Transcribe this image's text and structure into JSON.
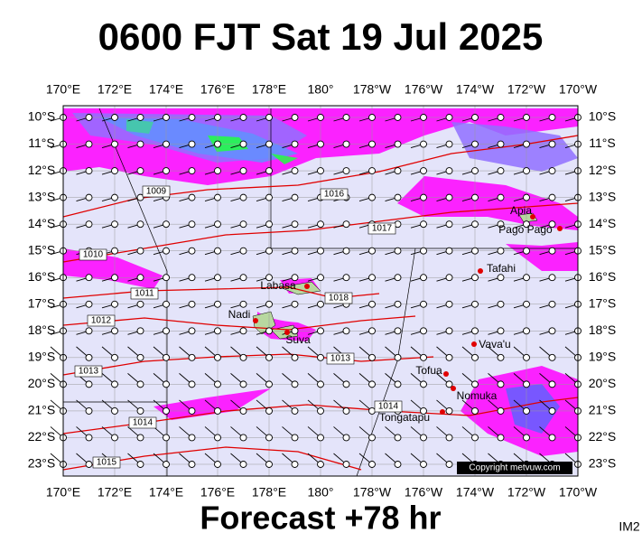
{
  "header": {
    "title": "0600 FJT Sat 19 Jul 2025"
  },
  "map": {
    "lon_labels": [
      "170°E",
      "172°E",
      "174°E",
      "176°E",
      "178°E",
      "180°",
      "178°W",
      "176°W",
      "174°W",
      "172°W",
      "170°W"
    ],
    "lat_labels": [
      "10°S",
      "11°S",
      "12°S",
      "13°S",
      "14°S",
      "15°S",
      "16°S",
      "17°S",
      "18°S",
      "19°S",
      "20°S",
      "21°S",
      "22°S",
      "23°S"
    ],
    "isobar_labels": [
      "1009",
      "1010",
      "1011",
      "1012",
      "1013",
      "1014",
      "1015",
      "1016",
      "1017",
      "1018",
      "1013",
      "1014"
    ],
    "places": [
      "Apia",
      "Pago Pago",
      "Tafahi",
      "Labasa",
      "Nadi",
      "Suva",
      "Vava'u",
      "Tofua",
      "Nomuka",
      "Tongatapu"
    ],
    "copyright": "Copyright metvuw.com"
  },
  "footer": {
    "caption": "Forecast +78 hr",
    "image_id": "IM2"
  }
}
